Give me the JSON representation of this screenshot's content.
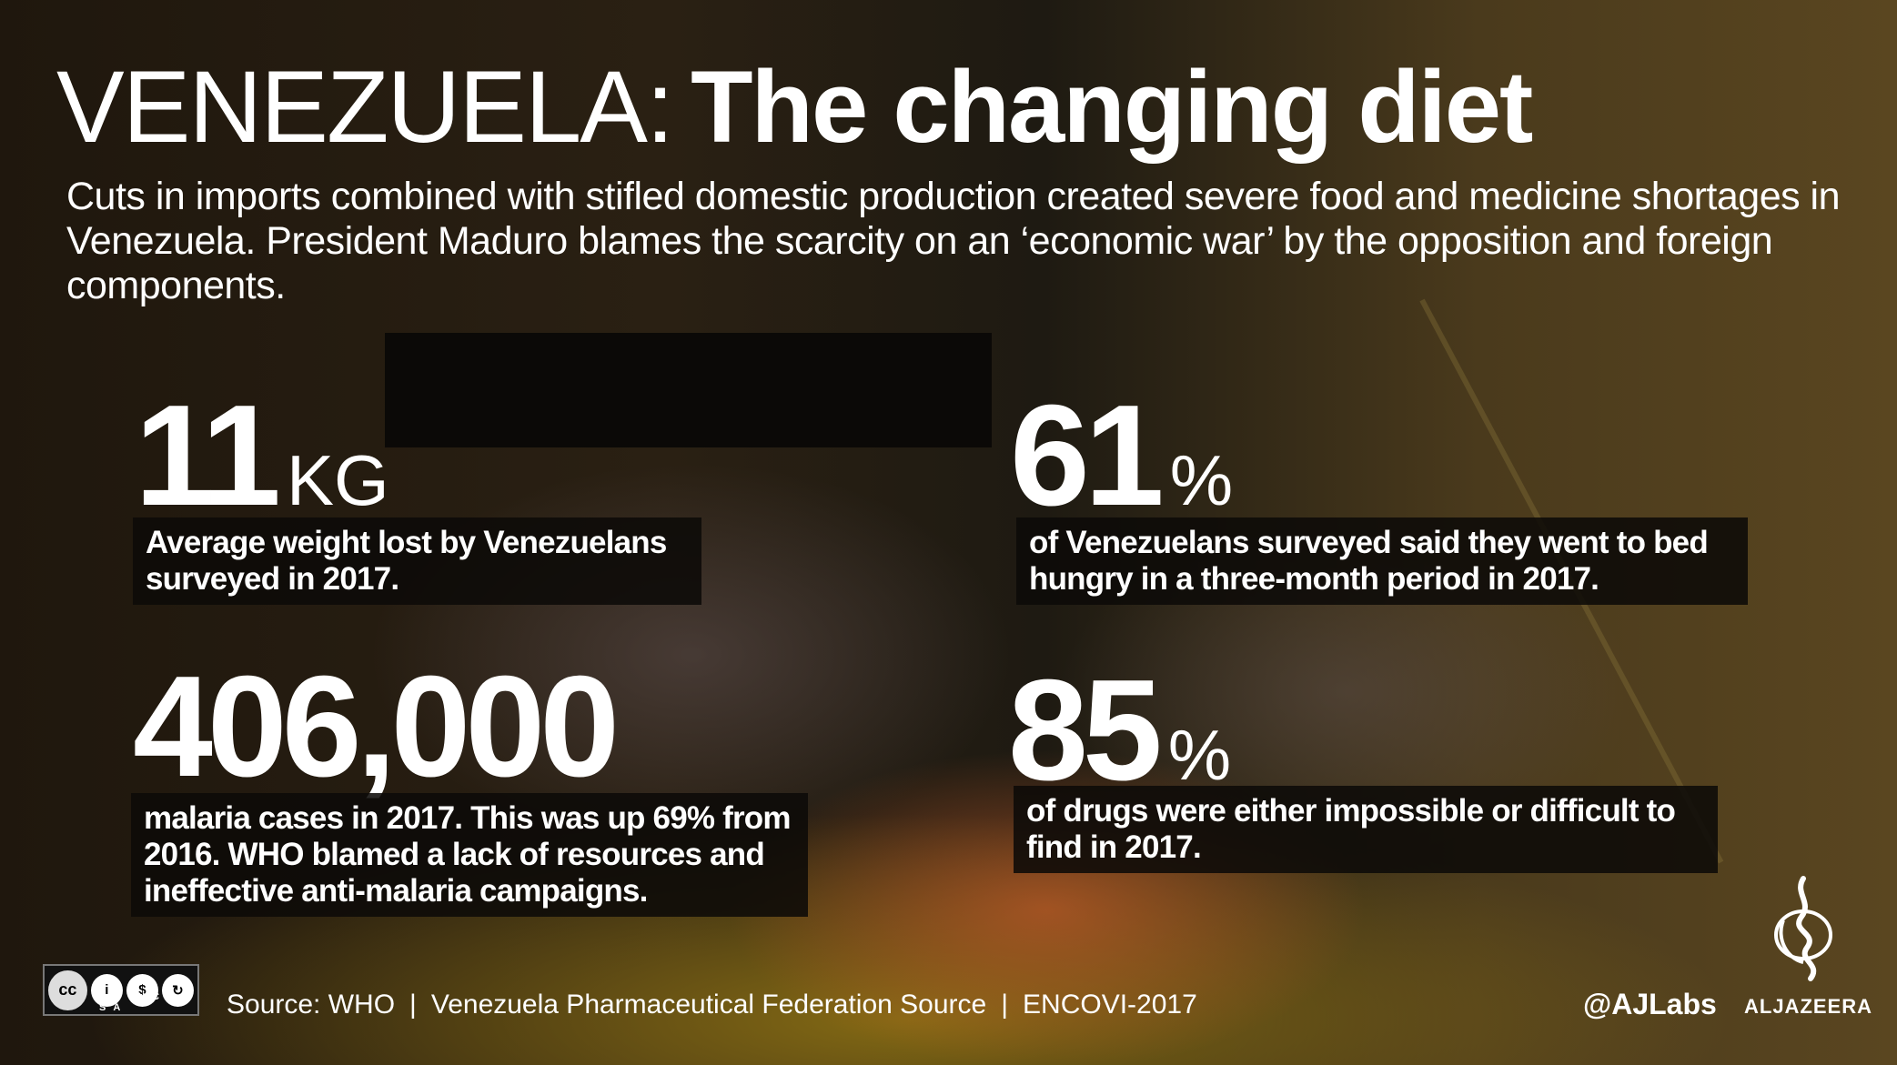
{
  "title": {
    "light": "VENEZUELA:",
    "bold": "The changing diet"
  },
  "subtitle": "Cuts in imports combined with stifled domestic production created severe food and medicine shortages in Venezuela. President Maduro blames the scarcity on an ‘economic war’ by the opposition and foreign components.",
  "stats": [
    {
      "value": "11",
      "unit": "KG",
      "caption": "Average weight lost by Venezuelans surveyed in 2017."
    },
    {
      "value": "61",
      "unit": "%",
      "caption": "of Venezuelans surveyed said they went to bed hungry in a three-month period in 2017."
    },
    {
      "value": "406,000",
      "unit": "",
      "caption": "malaria cases in 2017. This was up 69% from 2016. WHO blamed a lack of resources and ineffective anti-malaria campaigns."
    },
    {
      "value": "85",
      "unit": "%",
      "caption": "of drugs were either impossible or difficult to find in 2017."
    }
  ],
  "footer": {
    "sources": [
      "Source: WHO",
      "Venezuela Pharmaceutical Federation Source",
      "ENCOVI-2017"
    ],
    "separator": "|",
    "license": {
      "badge": "cc",
      "labels": "BY NC SA"
    },
    "handle": "@AJLabs",
    "brand": "ALJAZEERA"
  }
}
